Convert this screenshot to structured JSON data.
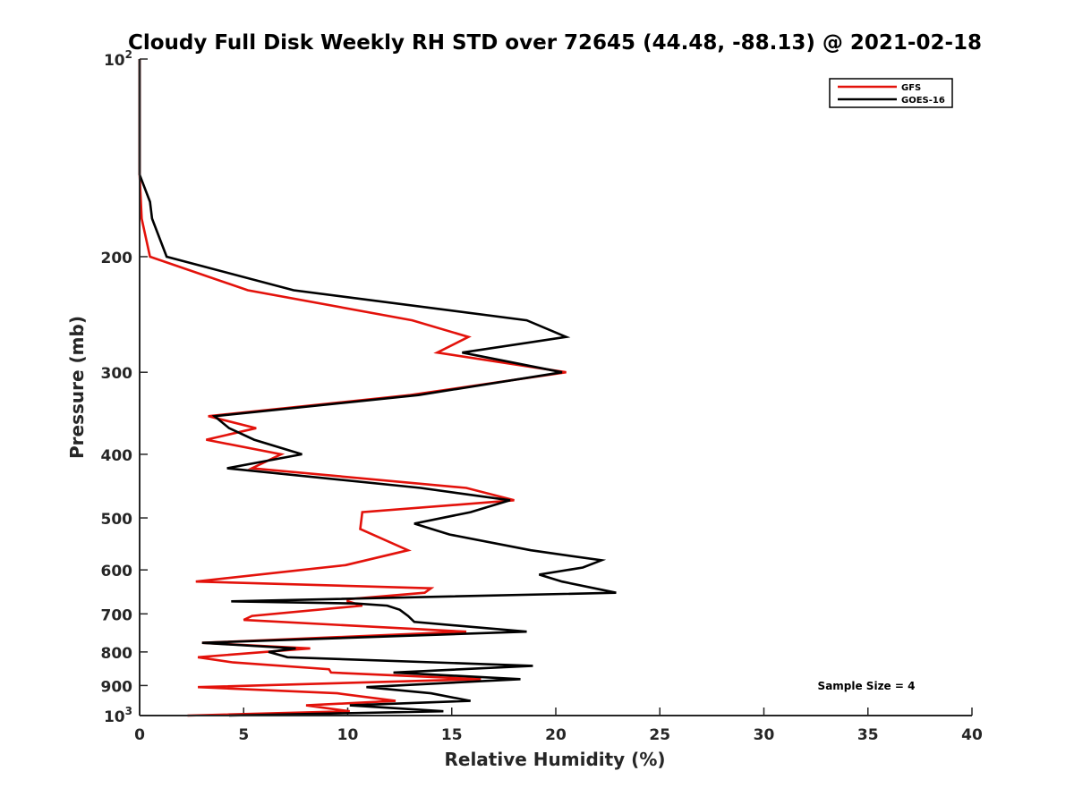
{
  "chart_data": {
    "type": "line",
    "title": "Cloudy Full Disk Weekly RH STD over 72645 (44.48, -88.13) @ 2021-02-18",
    "xlabel": "Relative Humidity (%)",
    "ylabel": "Pressure (mb)",
    "xlim": [
      0,
      40
    ],
    "ylim": [
      100,
      1000
    ],
    "yscale": "log",
    "y_reversed": true,
    "grid": false,
    "legend_position": "top-right",
    "x_ticks": [
      "0",
      "5",
      "10",
      "15",
      "20",
      "25",
      "30",
      "35",
      "40"
    ],
    "y_ticks": [
      {
        "value": 100,
        "base": "10",
        "exp": "2"
      },
      {
        "value": 200,
        "label": "200"
      },
      {
        "value": 300,
        "label": "300"
      },
      {
        "value": 400,
        "label": "400"
      },
      {
        "value": 500,
        "label": "500"
      },
      {
        "value": 600,
        "label": "600"
      },
      {
        "value": 700,
        "label": "700"
      },
      {
        "value": 800,
        "label": "800"
      },
      {
        "value": 900,
        "label": "900"
      },
      {
        "value": 1000,
        "base": "10",
        "exp": "3"
      }
    ],
    "annotation": "Sample Size = 4",
    "series": [
      {
        "name": "GFS",
        "color": "#e3120b",
        "points": [
          [
            0.0,
            100
          ],
          [
            0.0,
            125
          ],
          [
            0.0,
            150
          ],
          [
            0.1,
            175
          ],
          [
            0.5,
            200
          ],
          [
            5.2,
            225
          ],
          [
            13.1,
            250
          ],
          [
            15.8,
            265
          ],
          [
            14.3,
            280
          ],
          [
            20.5,
            300
          ],
          [
            13.0,
            325
          ],
          [
            3.3,
            350
          ],
          [
            5.6,
            365
          ],
          [
            3.2,
            380
          ],
          [
            6.8,
            400
          ],
          [
            5.4,
            420
          ],
          [
            15.7,
            450
          ],
          [
            18.0,
            470
          ],
          [
            10.7,
            490
          ],
          [
            10.6,
            520
          ],
          [
            12.9,
            560
          ],
          [
            9.9,
            590
          ],
          [
            2.7,
            625
          ],
          [
            14.0,
            640
          ],
          [
            13.7,
            650
          ],
          [
            10.0,
            665
          ],
          [
            10.0,
            670
          ],
          [
            10.7,
            680
          ],
          [
            5.4,
            705
          ],
          [
            5.0,
            715
          ],
          [
            15.7,
            745
          ],
          [
            3.0,
            775
          ],
          [
            8.2,
            790
          ],
          [
            2.8,
            815
          ],
          [
            4.5,
            830
          ],
          [
            9.1,
            850
          ],
          [
            9.2,
            860
          ],
          [
            16.4,
            880
          ],
          [
            2.8,
            905
          ],
          [
            9.5,
            925
          ],
          [
            12.3,
            950
          ],
          [
            8.0,
            965
          ],
          [
            10.1,
            985
          ],
          [
            2.3,
            1000
          ]
        ]
      },
      {
        "name": "GOES-16",
        "color": "#000000",
        "points": [
          [
            0.0,
            100
          ],
          [
            0.0,
            125
          ],
          [
            0.0,
            150
          ],
          [
            0.5,
            165
          ],
          [
            0.6,
            175
          ],
          [
            1.3,
            200
          ],
          [
            7.4,
            225
          ],
          [
            18.6,
            250
          ],
          [
            20.5,
            265
          ],
          [
            15.5,
            280
          ],
          [
            20.3,
            300
          ],
          [
            13.4,
            325
          ],
          [
            3.6,
            350
          ],
          [
            4.3,
            365
          ],
          [
            5.5,
            380
          ],
          [
            7.8,
            400
          ],
          [
            4.2,
            420
          ],
          [
            13.5,
            450
          ],
          [
            17.8,
            470
          ],
          [
            15.9,
            490
          ],
          [
            13.2,
            510
          ],
          [
            14.9,
            530
          ],
          [
            18.8,
            560
          ],
          [
            22.2,
            580
          ],
          [
            21.3,
            595
          ],
          [
            19.2,
            610
          ],
          [
            20.3,
            625
          ],
          [
            22.9,
            650
          ],
          [
            4.4,
            670
          ],
          [
            10.4,
            675
          ],
          [
            11.9,
            680
          ],
          [
            12.5,
            690
          ],
          [
            12.9,
            705
          ],
          [
            13.2,
            720
          ],
          [
            18.6,
            745
          ],
          [
            3.0,
            775
          ],
          [
            7.5,
            790
          ],
          [
            6.2,
            800
          ],
          [
            6.8,
            810
          ],
          [
            7.1,
            815
          ],
          [
            18.9,
            840
          ],
          [
            12.2,
            860
          ],
          [
            18.3,
            880
          ],
          [
            10.9,
            905
          ],
          [
            14.0,
            925
          ],
          [
            15.9,
            950
          ],
          [
            10.1,
            965
          ],
          [
            14.6,
            985
          ],
          [
            4.3,
            1000
          ]
        ]
      }
    ]
  },
  "colors": {
    "axis": "#262626",
    "background": "#ffffff"
  }
}
